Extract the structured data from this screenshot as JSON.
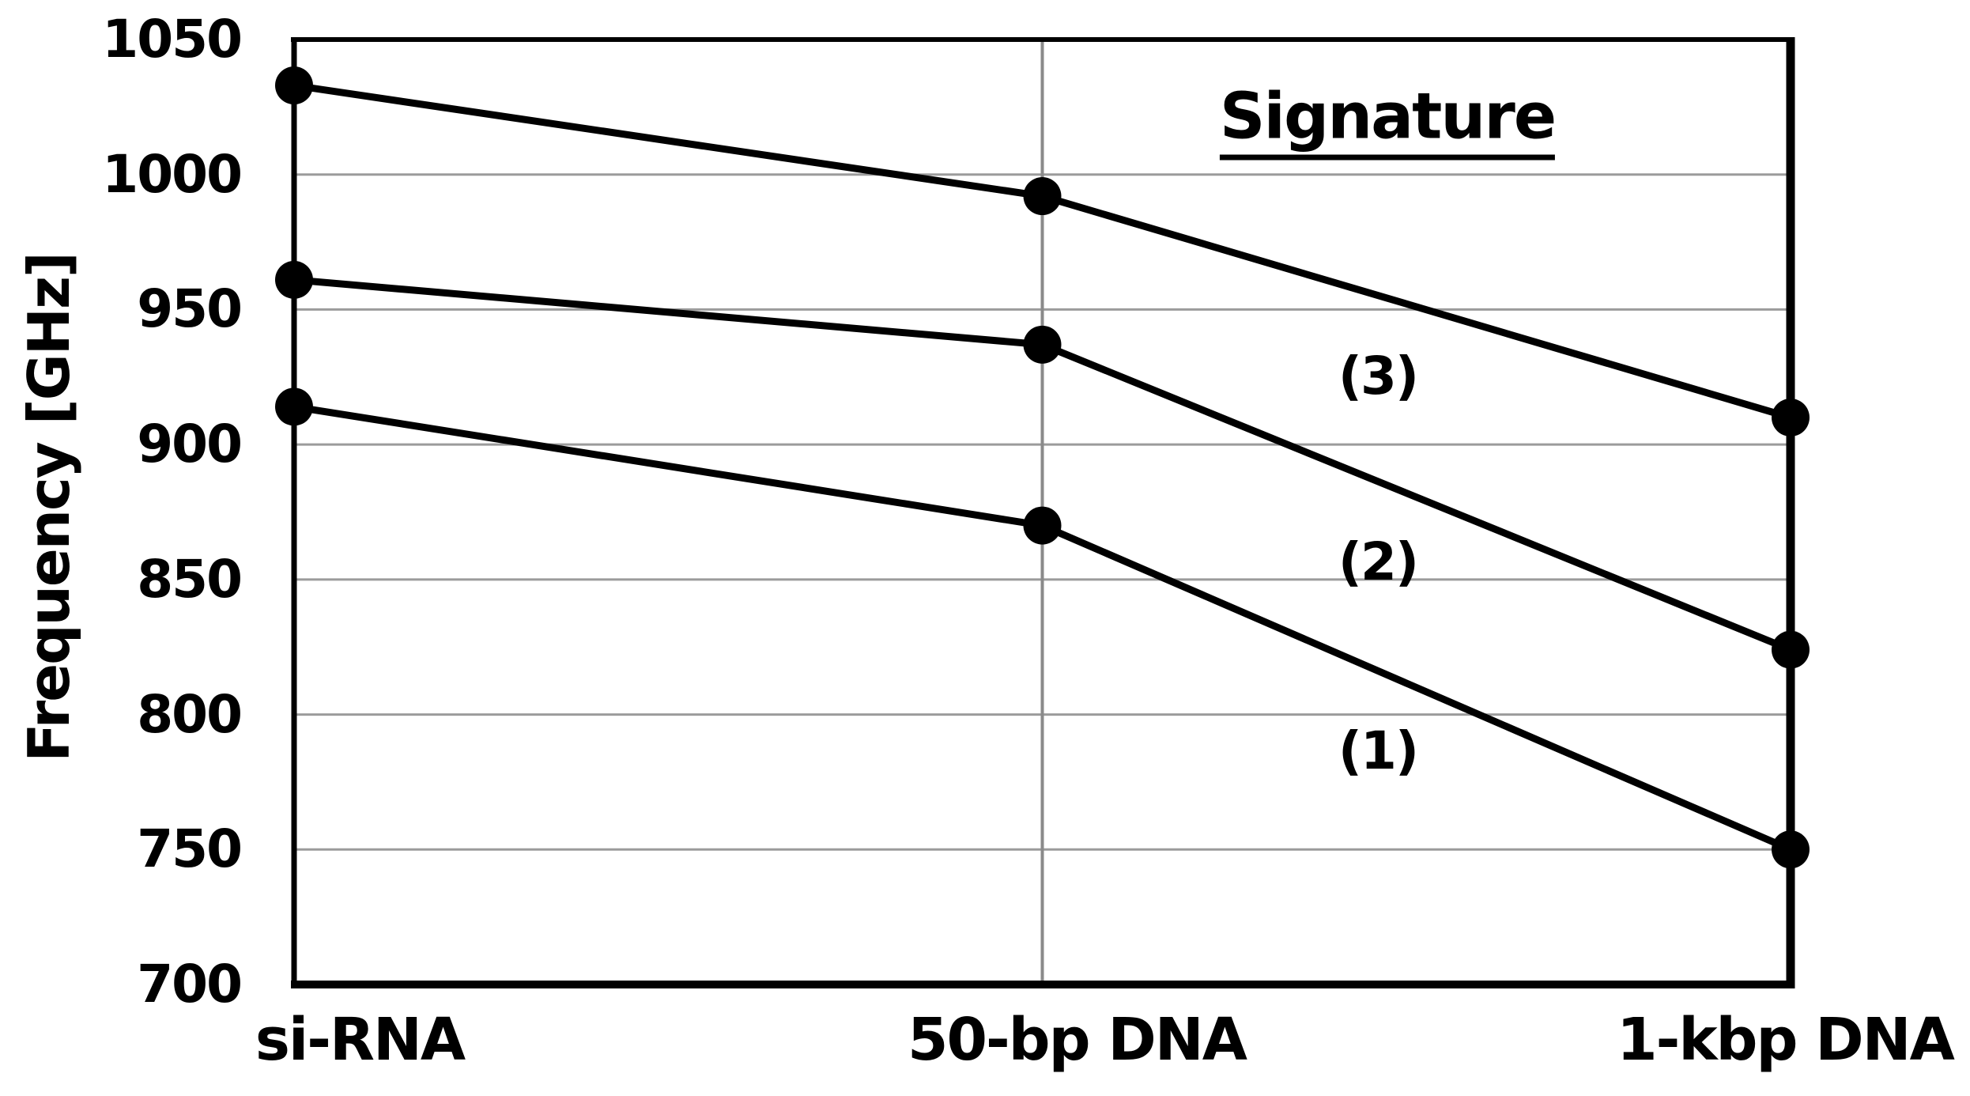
{
  "chart_data": {
    "type": "line",
    "title": "Signature",
    "ylabel": "Frequency [GHz]",
    "categories": [
      "si-RNA",
      "50-bp DNA",
      "1-kbp DNA"
    ],
    "series": [
      {
        "name": "(1)",
        "values": [
          914,
          870,
          750
        ]
      },
      {
        "name": "(2)",
        "values": [
          961,
          937,
          824
        ]
      },
      {
        "name": "(3)",
        "values": [
          1033,
          992,
          910
        ]
      }
    ],
    "ylim": [
      700,
      1050
    ],
    "ytick_step": 50,
    "yticks": [
      1050,
      1000,
      950,
      900,
      850,
      800,
      750,
      700
    ],
    "grid": {
      "horizontal": true,
      "vertical_mid_category": true
    },
    "legend_position": "inside-top-right",
    "marker": "filled-circle",
    "colors": {
      "line": "#000000",
      "marker": "#000000",
      "grid": "#9b9b9b",
      "mid_gridline": "#8a8a8a",
      "frame": "#000000",
      "text": "#000000",
      "background": "#ffffff"
    }
  }
}
